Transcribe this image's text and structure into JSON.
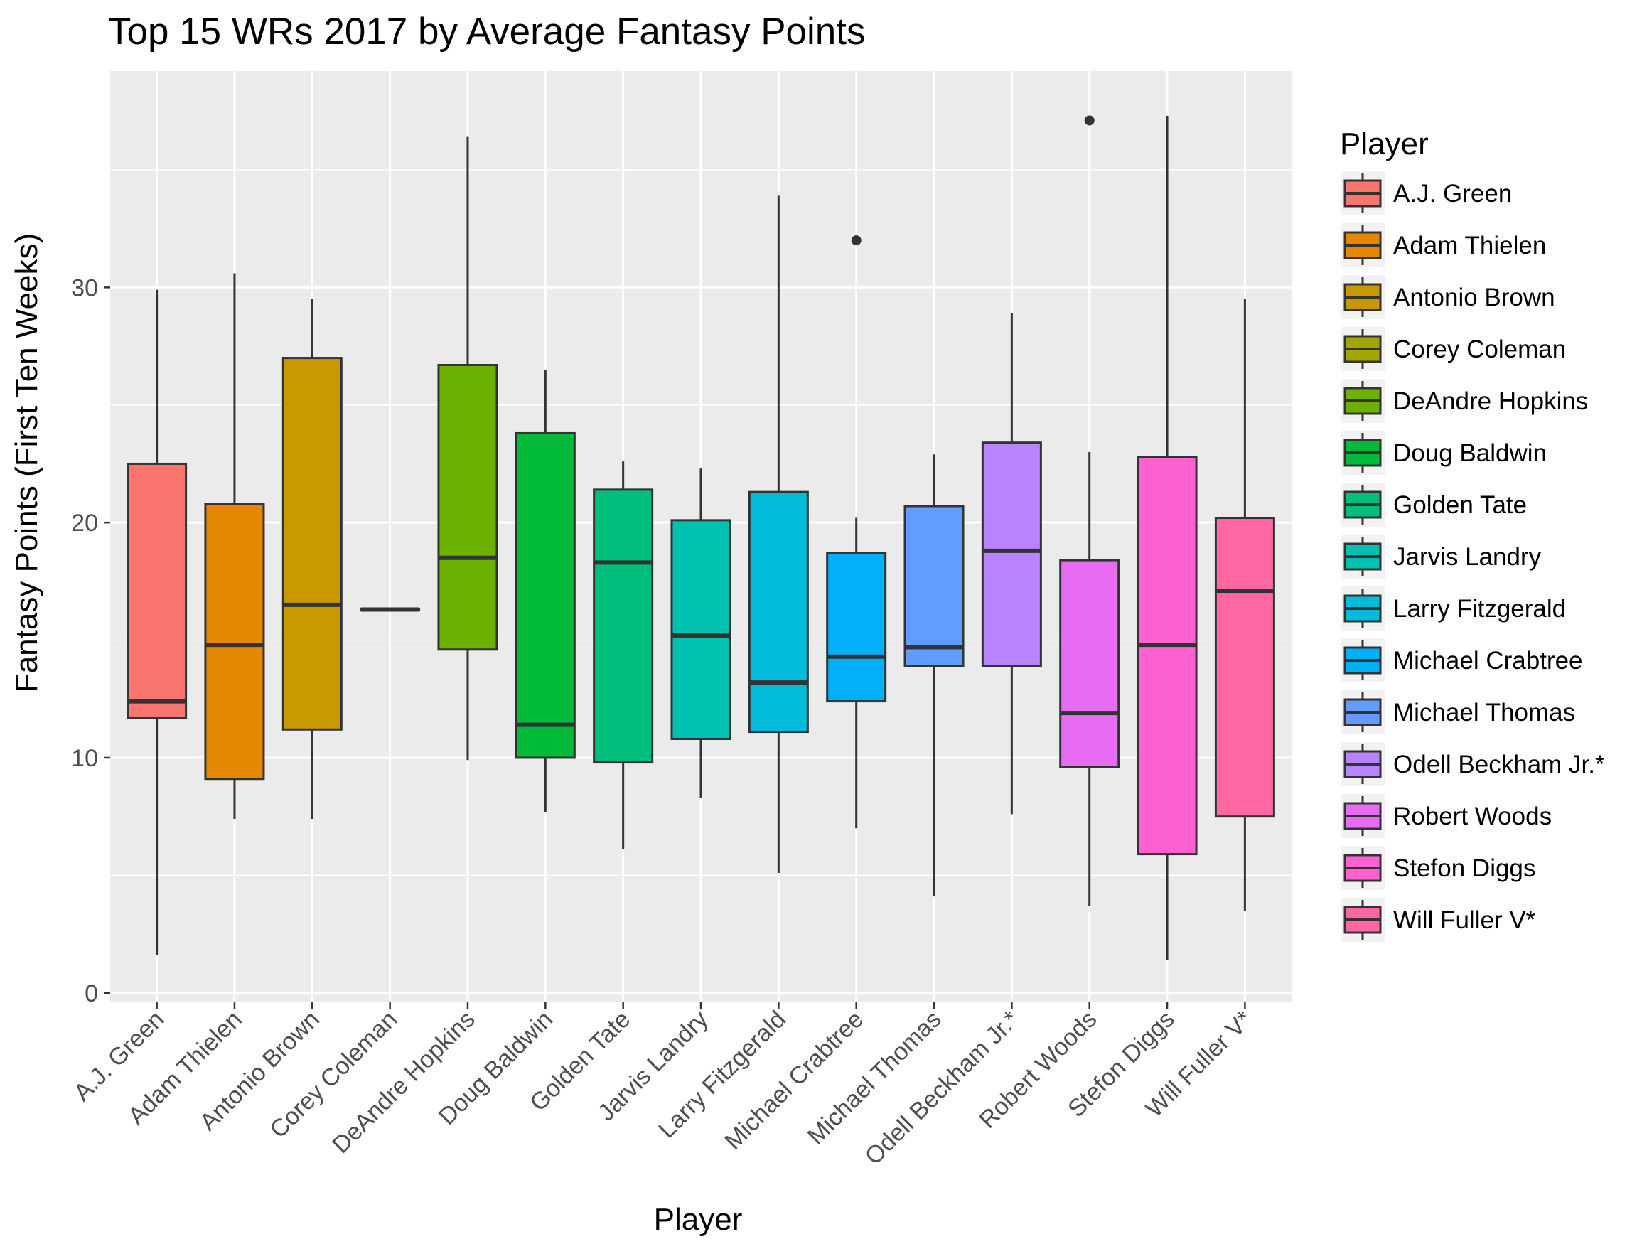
{
  "chart_data": {
    "type": "box",
    "title": "Top 15 WRs 2017 by Average Fantasy Points",
    "xlabel": "Player",
    "ylabel": "Fantasy Points (First Ten Weeks)",
    "ylim": [
      -0.4,
      39.2
    ],
    "yticks": [
      0,
      10,
      20,
      30
    ],
    "grid": true,
    "legend": {
      "title": "Player",
      "placement": "right"
    },
    "series": [
      {
        "name": "A.J. Green",
        "color": "#F8766D",
        "min": 1.6,
        "q1": 11.7,
        "median": 12.4,
        "q3": 22.5,
        "max": 29.9,
        "outliers": []
      },
      {
        "name": "Adam Thielen",
        "color": "#E58700",
        "min": 7.4,
        "q1": 9.1,
        "median": 14.8,
        "q3": 20.8,
        "max": 30.6,
        "outliers": []
      },
      {
        "name": "Antonio Brown",
        "color": "#C99800",
        "min": 7.4,
        "q1": 11.2,
        "median": 16.5,
        "q3": 27.0,
        "max": 29.5,
        "outliers": []
      },
      {
        "name": "Corey Coleman",
        "color": "#A3A500",
        "min": 16.3,
        "q1": 16.3,
        "median": 16.3,
        "q3": 16.3,
        "max": 16.3,
        "outliers": []
      },
      {
        "name": "DeAndre Hopkins",
        "color": "#6BB100",
        "min": 9.9,
        "q1": 14.6,
        "median": 18.5,
        "q3": 26.7,
        "max": 36.4,
        "outliers": []
      },
      {
        "name": "Doug Baldwin",
        "color": "#00BA38",
        "min": 7.7,
        "q1": 10.0,
        "median": 11.4,
        "q3": 23.8,
        "max": 26.5,
        "outliers": []
      },
      {
        "name": "Golden Tate",
        "color": "#00BF7D",
        "min": 6.1,
        "q1": 9.8,
        "median": 18.3,
        "q3": 21.4,
        "max": 22.6,
        "outliers": []
      },
      {
        "name": "Jarvis Landry",
        "color": "#00C0AF",
        "min": 8.3,
        "q1": 10.8,
        "median": 15.2,
        "q3": 20.1,
        "max": 22.3,
        "outliers": []
      },
      {
        "name": "Larry Fitzgerald",
        "color": "#00BCD8",
        "min": 5.1,
        "q1": 11.1,
        "median": 13.2,
        "q3": 21.3,
        "max": 33.9,
        "outliers": []
      },
      {
        "name": "Michael Crabtree",
        "color": "#00B0F6",
        "min": 7.0,
        "q1": 12.4,
        "median": 14.3,
        "q3": 18.7,
        "max": 20.2,
        "outliers": [
          32.0
        ]
      },
      {
        "name": "Michael Thomas",
        "color": "#619CFF",
        "min": 4.1,
        "q1": 13.9,
        "median": 14.7,
        "q3": 20.7,
        "max": 22.9,
        "outliers": []
      },
      {
        "name": "Odell Beckham Jr.*",
        "color": "#B983FF",
        "min": 7.6,
        "q1": 13.9,
        "median": 18.8,
        "q3": 23.4,
        "max": 28.9,
        "outliers": []
      },
      {
        "name": "Robert Woods",
        "color": "#E76BF3",
        "min": 3.7,
        "q1": 9.6,
        "median": 11.9,
        "q3": 18.4,
        "max": 23.0,
        "outliers": [
          37.1
        ]
      },
      {
        "name": "Stefon Diggs",
        "color": "#FD61D1",
        "min": 1.4,
        "q1": 5.9,
        "median": 14.8,
        "q3": 22.8,
        "max": 37.3,
        "outliers": []
      },
      {
        "name": "Will Fuller V*",
        "color": "#FF67A4",
        "min": 3.5,
        "q1": 7.5,
        "median": 17.1,
        "q3": 20.2,
        "max": 29.5,
        "outliers": []
      }
    ]
  }
}
